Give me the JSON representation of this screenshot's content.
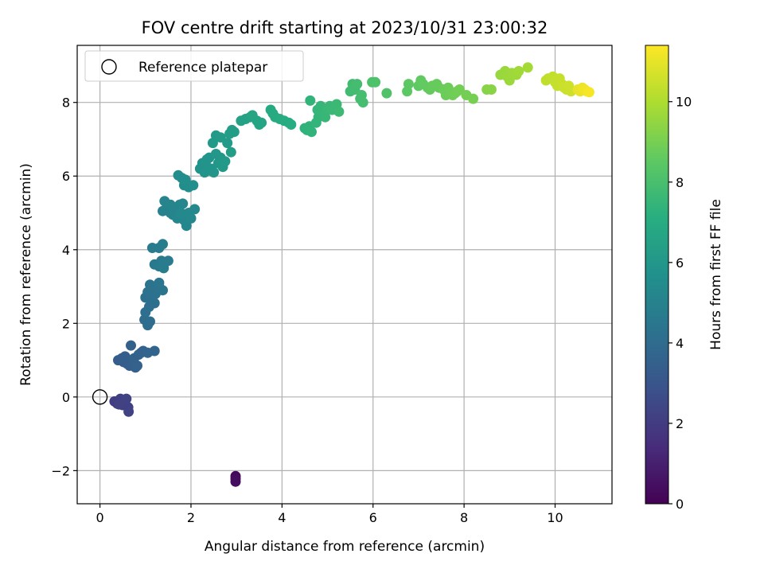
{
  "chart_data": {
    "type": "scatter",
    "title": "FOV centre drift starting at 2023/10/31 23:00:32",
    "xlabel": "Angular distance from reference (arcmin)",
    "ylabel": "Rotation from reference (arcmin)",
    "xlim": [
      -0.5,
      11.25
    ],
    "ylim": [
      -2.9,
      9.55
    ],
    "xticks": [
      0,
      2,
      4,
      6,
      8,
      10
    ],
    "yticks": [
      -2,
      0,
      2,
      4,
      6,
      8
    ],
    "grid": true,
    "legend": {
      "position": "top-left",
      "entries": [
        "Reference platepar"
      ]
    },
    "reference_point": {
      "x": 0,
      "y": 0,
      "label": "Reference platepar"
    },
    "colorbar": {
      "label": "Hours from first FF file",
      "colormap": "viridis",
      "range": [
        0,
        11.4
      ],
      "ticks": [
        0,
        2,
        4,
        6,
        8,
        10
      ]
    },
    "points": [
      [
        2.98,
        -2.15,
        0.2
      ],
      [
        2.98,
        -2.22,
        0.3
      ],
      [
        2.98,
        -2.3,
        0.4
      ],
      [
        0.32,
        -0.12,
        2.0
      ],
      [
        0.38,
        -0.18,
        2.05
      ],
      [
        0.45,
        -0.05,
        2.1
      ],
      [
        0.5,
        -0.22,
        2.12
      ],
      [
        0.55,
        -0.1,
        2.15
      ],
      [
        0.62,
        -0.28,
        2.2
      ],
      [
        0.63,
        -0.4,
        2.22
      ],
      [
        0.42,
        -0.2,
        2.18
      ],
      [
        0.58,
        -0.05,
        2.25
      ],
      [
        0.4,
        1.0,
        3.3
      ],
      [
        0.48,
        1.05,
        3.35
      ],
      [
        0.55,
        1.1,
        3.4
      ],
      [
        0.6,
        0.9,
        3.42
      ],
      [
        0.65,
        0.85,
        3.45
      ],
      [
        0.7,
        1.0,
        3.5
      ],
      [
        0.68,
        1.4,
        3.5
      ],
      [
        0.78,
        0.8,
        3.52
      ],
      [
        0.82,
        0.85,
        3.55
      ],
      [
        0.85,
        1.15,
        3.58
      ],
      [
        0.9,
        1.2,
        3.6
      ],
      [
        0.95,
        1.25,
        3.62
      ],
      [
        1.05,
        1.2,
        3.65
      ],
      [
        1.2,
        1.25,
        3.68
      ],
      [
        0.75,
        1.05,
        3.5
      ],
      [
        0.52,
        0.95,
        3.4
      ],
      [
        0.98,
        2.1,
        4.0
      ],
      [
        1.05,
        1.95,
        4.05
      ],
      [
        1.1,
        2.05,
        4.05
      ],
      [
        1.0,
        2.3,
        4.1
      ],
      [
        1.08,
        2.45,
        4.12
      ],
      [
        1.15,
        2.6,
        4.15
      ],
      [
        1.0,
        2.7,
        4.18
      ],
      [
        1.2,
        2.55,
        4.2
      ],
      [
        1.05,
        2.85,
        4.22
      ],
      [
        1.12,
        2.95,
        4.25
      ],
      [
        1.22,
        2.8,
        4.28
      ],
      [
        1.1,
        3.05,
        4.3
      ],
      [
        1.25,
        3.0,
        4.32
      ],
      [
        1.32,
        2.95,
        4.35
      ],
      [
        1.38,
        2.9,
        4.38
      ],
      [
        1.3,
        3.1,
        4.4
      ],
      [
        1.2,
        3.6,
        4.6
      ],
      [
        1.3,
        3.55,
        4.62
      ],
      [
        1.35,
        3.7,
        4.65
      ],
      [
        1.42,
        3.65,
        4.68
      ],
      [
        1.5,
        3.7,
        4.7
      ],
      [
        1.3,
        4.05,
        4.72
      ],
      [
        1.15,
        4.05,
        4.75
      ],
      [
        1.38,
        4.15,
        4.78
      ],
      [
        1.4,
        3.5,
        4.8
      ],
      [
        1.38,
        5.05,
        5.0
      ],
      [
        1.45,
        5.1,
        5.02
      ],
      [
        1.55,
        5.0,
        5.05
      ],
      [
        1.42,
        5.32,
        5.08
      ],
      [
        1.6,
        4.95,
        5.1
      ],
      [
        1.68,
        5.15,
        5.12
      ],
      [
        1.75,
        5.22,
        5.15
      ],
      [
        1.82,
        5.25,
        5.18
      ],
      [
        1.7,
        4.85,
        5.2
      ],
      [
        1.85,
        4.8,
        5.22
      ],
      [
        1.9,
        4.65,
        5.25
      ],
      [
        2.0,
        4.85,
        5.28
      ],
      [
        2.08,
        5.1,
        5.3
      ],
      [
        1.78,
        5.0,
        5.32
      ],
      [
        1.95,
        5.0,
        5.35
      ],
      [
        1.55,
        5.22,
        5.1
      ],
      [
        1.72,
        6.02,
        5.5
      ],
      [
        1.8,
        5.95,
        5.52
      ],
      [
        1.85,
        5.75,
        5.55
      ],
      [
        1.95,
        5.7,
        5.58
      ],
      [
        2.05,
        5.75,
        5.6
      ],
      [
        1.88,
        5.9,
        5.62
      ],
      [
        2.2,
        6.2,
        5.8
      ],
      [
        2.25,
        6.35,
        5.82
      ],
      [
        2.3,
        6.1,
        5.85
      ],
      [
        2.35,
        6.45,
        5.88
      ],
      [
        2.4,
        6.5,
        5.9
      ],
      [
        2.45,
        6.2,
        5.92
      ],
      [
        2.5,
        6.1,
        5.95
      ],
      [
        2.55,
        6.6,
        5.98
      ],
      [
        2.6,
        6.35,
        6.0
      ],
      [
        2.65,
        6.5,
        6.02
      ],
      [
        2.7,
        6.25,
        6.05
      ],
      [
        2.75,
        6.4,
        6.08
      ],
      [
        2.48,
        6.9,
        6.1
      ],
      [
        2.55,
        7.1,
        6.15
      ],
      [
        2.65,
        7.05,
        6.18
      ],
      [
        2.8,
        6.9,
        6.2
      ],
      [
        2.85,
        7.15,
        6.22
      ],
      [
        2.9,
        7.25,
        6.25
      ],
      [
        2.95,
        7.2,
        6.28
      ],
      [
        2.88,
        6.65,
        6.3
      ],
      [
        2.32,
        6.35,
        5.85
      ],
      [
        2.42,
        6.15,
        5.9
      ],
      [
        3.1,
        7.5,
        6.5
      ],
      [
        3.2,
        7.55,
        6.55
      ],
      [
        3.3,
        7.6,
        6.6
      ],
      [
        3.35,
        7.65,
        6.62
      ],
      [
        3.45,
        7.5,
        6.65
      ],
      [
        3.55,
        7.45,
        6.68
      ],
      [
        3.5,
        7.4,
        6.7
      ],
      [
        3.75,
        7.8,
        6.9
      ],
      [
        3.8,
        7.7,
        6.92
      ],
      [
        3.85,
        7.6,
        6.95
      ],
      [
        3.95,
        7.55,
        6.98
      ],
      [
        4.05,
        7.5,
        7.0
      ],
      [
        4.15,
        7.45,
        7.02
      ],
      [
        4.2,
        7.4,
        7.05
      ],
      [
        4.5,
        7.3,
        7.3
      ],
      [
        4.55,
        7.25,
        7.32
      ],
      [
        4.6,
        7.35,
        7.35
      ],
      [
        4.65,
        7.2,
        7.38
      ],
      [
        4.62,
        8.05,
        7.4
      ],
      [
        4.75,
        7.45,
        7.42
      ],
      [
        4.8,
        7.6,
        7.45
      ],
      [
        4.78,
        7.8,
        7.48
      ],
      [
        4.85,
        7.9,
        7.5
      ],
      [
        4.9,
        7.75,
        7.52
      ],
      [
        4.95,
        7.6,
        7.55
      ],
      [
        5.0,
        7.85,
        7.58
      ],
      [
        5.05,
        7.9,
        7.6
      ],
      [
        5.1,
        7.8,
        7.62
      ],
      [
        5.2,
        7.95,
        7.65
      ],
      [
        5.25,
        7.75,
        7.68
      ],
      [
        5.5,
        8.3,
        7.8
      ],
      [
        5.55,
        8.5,
        7.82
      ],
      [
        5.6,
        8.35,
        7.85
      ],
      [
        5.65,
        8.5,
        7.88
      ],
      [
        5.72,
        8.1,
        7.9
      ],
      [
        5.78,
        8.0,
        7.92
      ],
      [
        5.75,
        8.2,
        7.95
      ],
      [
        5.98,
        8.55,
        8.1
      ],
      [
        6.05,
        8.55,
        8.12
      ],
      [
        6.3,
        8.25,
        8.2
      ],
      [
        6.75,
        8.3,
        8.5
      ],
      [
        6.78,
        8.5,
        8.52
      ],
      [
        7.0,
        8.45,
        8.55
      ],
      [
        7.05,
        8.6,
        8.58
      ],
      [
        7.1,
        8.5,
        8.6
      ],
      [
        7.2,
        8.4,
        8.62
      ],
      [
        7.25,
        8.35,
        8.65
      ],
      [
        7.3,
        8.45,
        8.68
      ],
      [
        7.4,
        8.5,
        8.7
      ],
      [
        7.45,
        8.4,
        8.72
      ],
      [
        7.55,
        8.35,
        8.75
      ],
      [
        7.6,
        8.2,
        8.78
      ],
      [
        7.65,
        8.4,
        8.8
      ],
      [
        7.7,
        8.3,
        8.82
      ],
      [
        7.75,
        8.2,
        8.85
      ],
      [
        7.8,
        8.25,
        8.88
      ],
      [
        7.85,
        8.3,
        8.9
      ],
      [
        7.9,
        8.35,
        8.92
      ],
      [
        8.05,
        8.2,
        8.95
      ],
      [
        8.2,
        8.1,
        8.98
      ],
      [
        8.5,
        8.35,
        9.3
      ],
      [
        8.6,
        8.35,
        9.32
      ],
      [
        8.8,
        8.75,
        9.6
      ],
      [
        8.9,
        8.85,
        9.62
      ],
      [
        8.95,
        8.7,
        9.65
      ],
      [
        9.0,
        8.6,
        9.68
      ],
      [
        9.05,
        8.8,
        9.7
      ],
      [
        9.15,
        8.75,
        9.72
      ],
      [
        9.2,
        8.85,
        9.75
      ],
      [
        9.4,
        8.95,
        9.8
      ],
      [
        9.8,
        8.6,
        10.3
      ],
      [
        9.85,
        8.65,
        10.32
      ],
      [
        9.95,
        8.7,
        10.35
      ],
      [
        10.0,
        8.55,
        10.38
      ],
      [
        10.05,
        8.45,
        10.4
      ],
      [
        10.1,
        8.65,
        10.42
      ],
      [
        10.15,
        8.5,
        10.45
      ],
      [
        10.2,
        8.4,
        10.48
      ],
      [
        10.25,
        8.35,
        10.5
      ],
      [
        10.3,
        8.45,
        10.52
      ],
      [
        10.35,
        8.3,
        10.55
      ],
      [
        10.5,
        8.35,
        11.0
      ],
      [
        10.55,
        8.3,
        11.05
      ],
      [
        10.6,
        8.4,
        11.1
      ],
      [
        10.65,
        8.35,
        11.15
      ],
      [
        10.7,
        8.3,
        11.2
      ],
      [
        10.75,
        8.28,
        11.3
      ]
    ]
  }
}
